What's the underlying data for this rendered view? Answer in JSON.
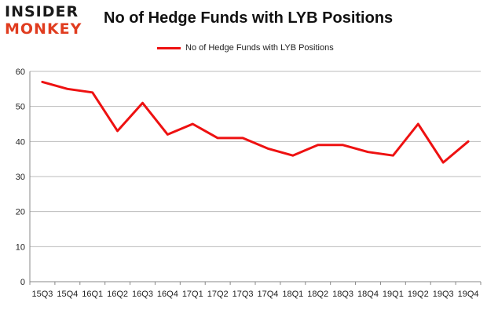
{
  "logo": {
    "top": "INSIDER",
    "bottom": "MONKEY"
  },
  "chart_data": {
    "type": "line",
    "title": "No of Hedge Funds with LYB Positions",
    "categories": [
      "15Q3",
      "15Q4",
      "16Q1",
      "16Q2",
      "16Q3",
      "16Q4",
      "17Q1",
      "17Q2",
      "17Q3",
      "17Q4",
      "18Q1",
      "18Q2",
      "18Q3",
      "18Q4",
      "19Q1",
      "19Q2",
      "19Q3",
      "19Q4"
    ],
    "series": [
      {
        "name": "No of Hedge Funds with LYB Positions",
        "values": [
          57,
          55,
          54,
          43,
          51,
          42,
          45,
          41,
          41,
          38,
          36,
          39,
          39,
          37,
          36,
          45,
          34,
          40
        ]
      }
    ],
    "ylim": [
      0,
      60
    ],
    "yticks": [
      0,
      10,
      20,
      30,
      40,
      50,
      60
    ],
    "grid": true,
    "legend_position": "top",
    "colors": {
      "line": "#ee1111",
      "grid": "#bbbbbb",
      "axis": "#888888"
    }
  }
}
